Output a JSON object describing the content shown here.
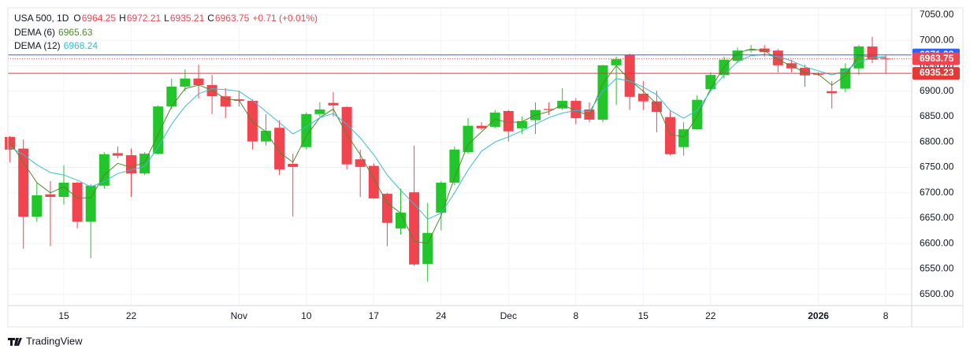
{
  "chart_data": {
    "type": "candlestick",
    "symbol": "USA 500, 1D",
    "change": "+0.71 (+0.01%)",
    "header_labels": {
      "open": "O",
      "high": "H",
      "low": "L",
      "close": "C"
    },
    "categories": [
      null,
      null,
      null,
      null,
      "15",
      null,
      null,
      null,
      null,
      "22",
      null,
      null,
      null,
      null,
      null,
      null,
      null,
      "Nov",
      null,
      null,
      null,
      null,
      "10",
      null,
      null,
      null,
      null,
      "17",
      null,
      null,
      null,
      null,
      "24",
      null,
      null,
      null,
      null,
      "Dec",
      null,
      null,
      null,
      null,
      "8",
      null,
      null,
      null,
      null,
      "15",
      null,
      null,
      null,
      null,
      "22",
      null,
      null,
      null,
      null,
      null,
      null,
      null,
      "2026",
      null,
      null,
      null,
      null,
      "8"
    ],
    "open": [
      6810,
      6787,
      6653,
      6697,
      6692,
      6720,
      6643,
      6714,
      6778,
      6774,
      6738,
      6777,
      6870,
      6909,
      6925,
      6912,
      6890,
      6884,
      6881,
      6801,
      6828,
      6757,
      6790,
      6855,
      6877,
      6869,
      6766,
      6753,
      6698,
      6630,
      6701,
      6560,
      6661,
      6720,
      6780,
      6832,
      6830,
      6861,
      6827,
      6843,
      6865,
      6866,
      6881,
      6864,
      6844,
      6951,
      6971,
      6895,
      6880,
      6849,
      6790,
      6825,
      6904,
      6932,
      6960,
      6980,
      6984,
      6980,
      6955,
      6946,
      6934,
      6900,
      6905,
      6945,
      6988,
      6964.25
    ],
    "high": [
      6812,
      6805,
      6720,
      6723,
      6754,
      6722,
      6717,
      6780,
      6791,
      6787,
      6780,
      6872,
      6925,
      6943,
      6952,
      6932,
      6906,
      6901,
      6884,
      6855,
      6843,
      6777,
      6858,
      6878,
      6898,
      6870,
      6785,
      6758,
      6700,
      6708,
      6793,
      6680,
      6723,
      6791,
      6847,
      6839,
      6863,
      6863,
      6850,
      6878,
      6878,
      6906,
      6886,
      6878,
      6952,
      6968,
      6974,
      6920,
      6901,
      6863,
      6839,
      6892,
      6937,
      6968,
      6986,
      6991,
      6991,
      6983,
      6962,
      6952,
      6937,
      6920,
      6955,
      6991,
      7007,
      6972.21
    ],
    "low": [
      6760,
      6590,
      6643,
      6595,
      6677,
      6630,
      6571,
      6708,
      6768,
      6692,
      6735,
      6775,
      6865,
      6900,
      6886,
      6855,
      6847,
      6870,
      6785,
      6793,
      6735,
      6653,
      6785,
      6850,
      6850,
      6746,
      6692,
      6688,
      6595,
      6618,
      6556,
      6525,
      6626,
      6715,
      6777,
      6824,
      6827,
      6801,
      6816,
      6816,
      6853,
      6863,
      6835,
      6839,
      6839,
      6873,
      6863,
      6863,
      6819,
      6774,
      6773,
      6824,
      6901,
      6925,
      6955,
      6976,
      6968,
      6937,
      6937,
      6909,
      6930,
      6866,
      6898,
      6932,
      6955,
      6935.21
    ],
    "close": [
      6785,
      6653,
      6695,
      6692,
      6720,
      6643,
      6714,
      6776,
      6773,
      6738,
      6777,
      6870,
      6909,
      6925,
      6912,
      6890,
      6870,
      6881,
      6801,
      6822,
      6746,
      6751,
      6855,
      6864,
      6872,
      6756,
      6751,
      6689,
      6641,
      6661,
      6559,
      6621,
      6720,
      6785,
      6832,
      6827,
      6858,
      6821,
      6841,
      6863,
      6863,
      6881,
      6847,
      6844,
      6951,
      6963,
      6889,
      6880,
      6859,
      6776,
      6825,
      6883,
      6932,
      6962,
      6980,
      6982,
      6977,
      6951,
      6945,
      6931,
      6933,
      6896,
      6945,
      6988,
      6962,
      6963.75
    ],
    "up_color": "#22c52a",
    "down_color": "#f0454f",
    "series": [
      {
        "name": "DEMA (6)",
        "color": "#4f8a2a",
        "values": [
          6800,
          6760,
          6720,
          6700,
          6712,
          6690,
          6690,
          6735,
          6758,
          6750,
          6760,
          6815,
          6870,
          6905,
          6912,
          6902,
          6885,
          6882,
          6840,
          6820,
          6780,
          6760,
          6812,
          6848,
          6865,
          6815,
          6775,
          6728,
          6680,
          6660,
          6605,
          6600,
          6655,
          6730,
          6795,
          6820,
          6845,
          6838,
          6840,
          6853,
          6860,
          6873,
          6862,
          6852,
          6915,
          6950,
          6922,
          6900,
          6875,
          6815,
          6810,
          6850,
          6905,
          6948,
          6975,
          6983,
          6980,
          6962,
          6950,
          6937,
          6933,
          6912,
          6930,
          6970,
          6968,
          6965.63
        ]
      },
      {
        "name": "DEMA (12)",
        "color": "#38bcd8",
        "values": [
          6790,
          6775,
          6755,
          6740,
          6735,
          6725,
          6712,
          6722,
          6738,
          6745,
          6752,
          6790,
          6835,
          6870,
          6895,
          6905,
          6903,
          6900,
          6882,
          6860,
          6838,
          6816,
          6830,
          6848,
          6856,
          6835,
          6808,
          6775,
          6735,
          6705,
          6678,
          6648,
          6660,
          6700,
          6745,
          6782,
          6800,
          6810,
          6822,
          6835,
          6848,
          6857,
          6862,
          6860,
          6900,
          6925,
          6920,
          6908,
          6893,
          6862,
          6847,
          6862,
          6900,
          6932,
          6958,
          6970,
          6972,
          6968,
          6960,
          6948,
          6940,
          6932,
          6940,
          6958,
          6966,
          6968.24
        ]
      }
    ],
    "price_lines": [
      {
        "value": 6971.38,
        "color": "#2962ff"
      },
      {
        "value": 6935.23,
        "color": "#e53935"
      }
    ],
    "ylim": [
      6478,
      7064
    ],
    "yticks": [
      {
        "value": 6500,
        "label": "6500.00"
      },
      {
        "value": 6550,
        "label": "6550.00"
      },
      {
        "value": 6600,
        "label": "6600.00"
      },
      {
        "value": 6650,
        "label": "6650.00"
      },
      {
        "value": 6700,
        "label": "6700.00"
      },
      {
        "value": 6750,
        "label": "6750.00"
      },
      {
        "value": 6800,
        "label": "6800.00"
      },
      {
        "value": 6850,
        "label": "6850.00"
      },
      {
        "value": 6900,
        "label": "6900.00"
      },
      {
        "value": 6950,
        "label": "6950.00"
      },
      {
        "value": 7000,
        "label": "7000.00"
      },
      {
        "value": 7050,
        "label": "7050.00"
      }
    ],
    "grid": true
  },
  "footer": {
    "brand": "TradingView"
  }
}
